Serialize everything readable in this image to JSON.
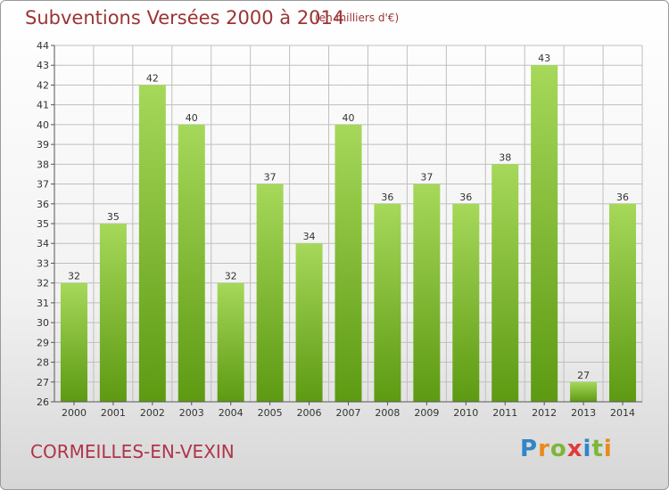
{
  "header": {
    "title": "Subventions Versées 2000 à 2014",
    "unit": "(en milliers d'€)"
  },
  "footer": {
    "city": "CORMEILLES-EN-VEXIN",
    "logo_letters": [
      "P",
      "r",
      "o",
      "x",
      "i",
      "t",
      "i"
    ]
  },
  "colors": {
    "title": "#9b3434",
    "bar_light": "#a6d85a",
    "bar_dark": "#5d9a12",
    "grid": "#bfbfbf"
  },
  "chart_data": {
    "type": "bar",
    "categories": [
      "2000",
      "2001",
      "2002",
      "2003",
      "2004",
      "2005",
      "2006",
      "2007",
      "2008",
      "2009",
      "2010",
      "2011",
      "2012",
      "2013",
      "2014"
    ],
    "values": [
      32,
      35,
      42,
      40,
      32,
      37,
      34,
      40,
      36,
      37,
      36,
      38,
      43,
      27,
      36
    ],
    "ylim": [
      26,
      44
    ],
    "yticks": [
      26,
      27,
      28,
      29,
      30,
      31,
      32,
      33,
      34,
      35,
      36,
      37,
      38,
      39,
      40,
      41,
      42,
      43,
      44
    ],
    "grid": true,
    "title": "Subventions Versées 2000 à 2014"
  }
}
